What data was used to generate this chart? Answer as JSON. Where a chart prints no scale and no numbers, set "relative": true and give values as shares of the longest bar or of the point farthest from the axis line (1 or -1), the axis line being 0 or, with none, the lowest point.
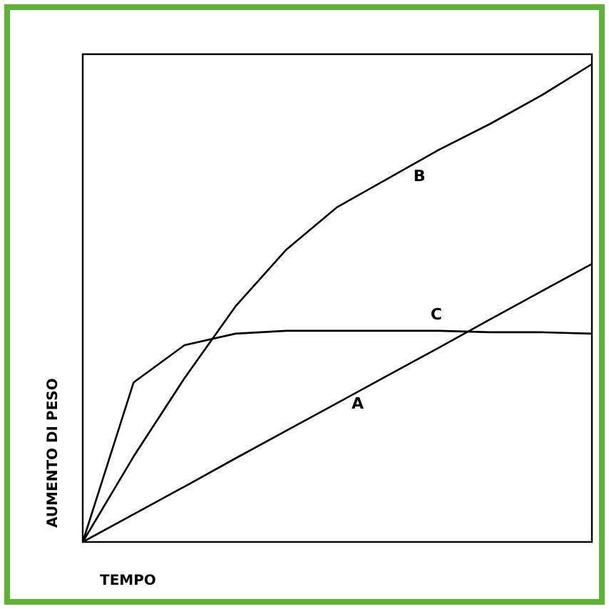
{
  "chart_data": {
    "type": "line",
    "relative": true,
    "xlabel": "TEMPO",
    "ylabel": "AUMENTO DI PESO",
    "categories": [
      null,
      null,
      null,
      null,
      null,
      null,
      null,
      null,
      null,
      null,
      null
    ],
    "series": [
      {
        "name": "A",
        "color": "#000000",
        "values": [
          0,
          0.058,
          0.116,
          0.175,
          0.233,
          0.291,
          0.349,
          0.407,
          0.466,
          0.524,
          0.582
        ]
      },
      {
        "name": "B",
        "color": "#000000",
        "values": [
          0,
          0.179,
          0.343,
          0.493,
          0.612,
          0.701,
          0.761,
          0.821,
          0.875,
          0.934,
          1
        ]
      },
      {
        "name": "C",
        "color": "#000000",
        "values": [
          0,
          0.334,
          0.412,
          0.436,
          0.442,
          0.442,
          0.442,
          0.442,
          0.439,
          0.439,
          0.436
        ]
      }
    ],
    "marker": "none",
    "line_style": "solid"
  }
}
